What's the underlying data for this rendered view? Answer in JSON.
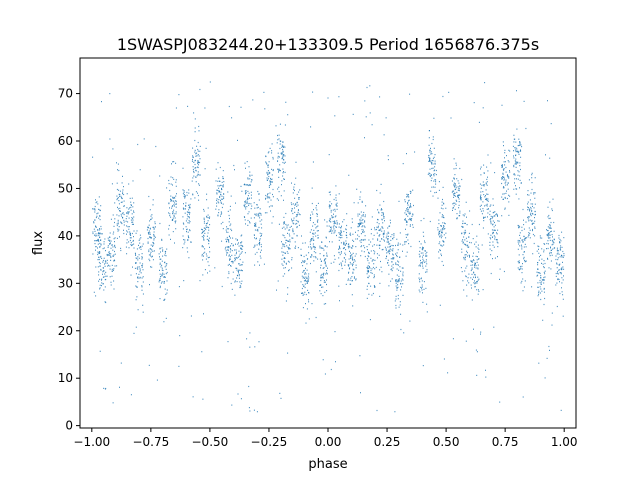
{
  "chart_data": {
    "type": "scatter",
    "title": "1SWASPJ083244.20+133309.5 Period 1656876.375s",
    "xlabel": "phase",
    "ylabel": "flux",
    "xlim": [
      -1.05,
      1.05
    ],
    "ylim": [
      -0.5,
      77.5
    ],
    "xticks": [
      -1.0,
      -0.75,
      -0.5,
      -0.25,
      0.0,
      0.25,
      0.5,
      0.75,
      1.0
    ],
    "xtick_labels": [
      "−1.00",
      "−0.75",
      "−0.50",
      "−0.25",
      "0.00",
      "0.25",
      "0.50",
      "0.75",
      "1.00"
    ],
    "yticks": [
      0,
      10,
      20,
      30,
      40,
      50,
      60,
      70
    ],
    "ytick_labels": [
      "0",
      "10",
      "20",
      "30",
      "40",
      "50",
      "60",
      "70"
    ],
    "grid": false,
    "marker_color": "#1f77b4",
    "x_range": [
      -1.0,
      1.0
    ],
    "band_centers": [
      [
        -0.98,
        42
      ],
      [
        -0.96,
        34
      ],
      [
        -0.92,
        37
      ],
      [
        -0.88,
        46
      ],
      [
        -0.84,
        42
      ],
      [
        -0.8,
        33
      ],
      [
        -0.75,
        40
      ],
      [
        -0.7,
        32
      ],
      [
        -0.66,
        47
      ],
      [
        -0.6,
        44
      ],
      [
        -0.56,
        55
      ],
      [
        -0.52,
        40
      ],
      [
        -0.46,
        49
      ],
      [
        -0.42,
        38
      ],
      [
        -0.38,
        34
      ],
      [
        -0.34,
        48
      ],
      [
        -0.3,
        41
      ],
      [
        -0.25,
        52
      ],
      [
        -0.2,
        56
      ],
      [
        -0.18,
        37
      ],
      [
        -0.14,
        45
      ],
      [
        -0.1,
        32
      ],
      [
        -0.06,
        40
      ],
      [
        -0.02,
        34
      ],
      [
        0.02,
        43
      ],
      [
        0.06,
        38
      ],
      [
        0.1,
        35
      ],
      [
        0.14,
        42
      ],
      [
        0.18,
        33
      ],
      [
        0.22,
        40
      ],
      [
        0.26,
        37
      ],
      [
        0.3,
        32
      ],
      [
        0.34,
        45
      ],
      [
        0.4,
        35
      ],
      [
        0.44,
        55
      ],
      [
        0.48,
        42
      ],
      [
        0.54,
        49
      ],
      [
        0.58,
        38
      ],
      [
        0.62,
        34
      ],
      [
        0.66,
        48
      ],
      [
        0.7,
        41
      ],
      [
        0.75,
        52
      ],
      [
        0.8,
        56
      ],
      [
        0.82,
        37
      ],
      [
        0.86,
        45
      ],
      [
        0.9,
        32
      ],
      [
        0.94,
        40
      ],
      [
        0.98,
        34
      ]
    ]
  }
}
